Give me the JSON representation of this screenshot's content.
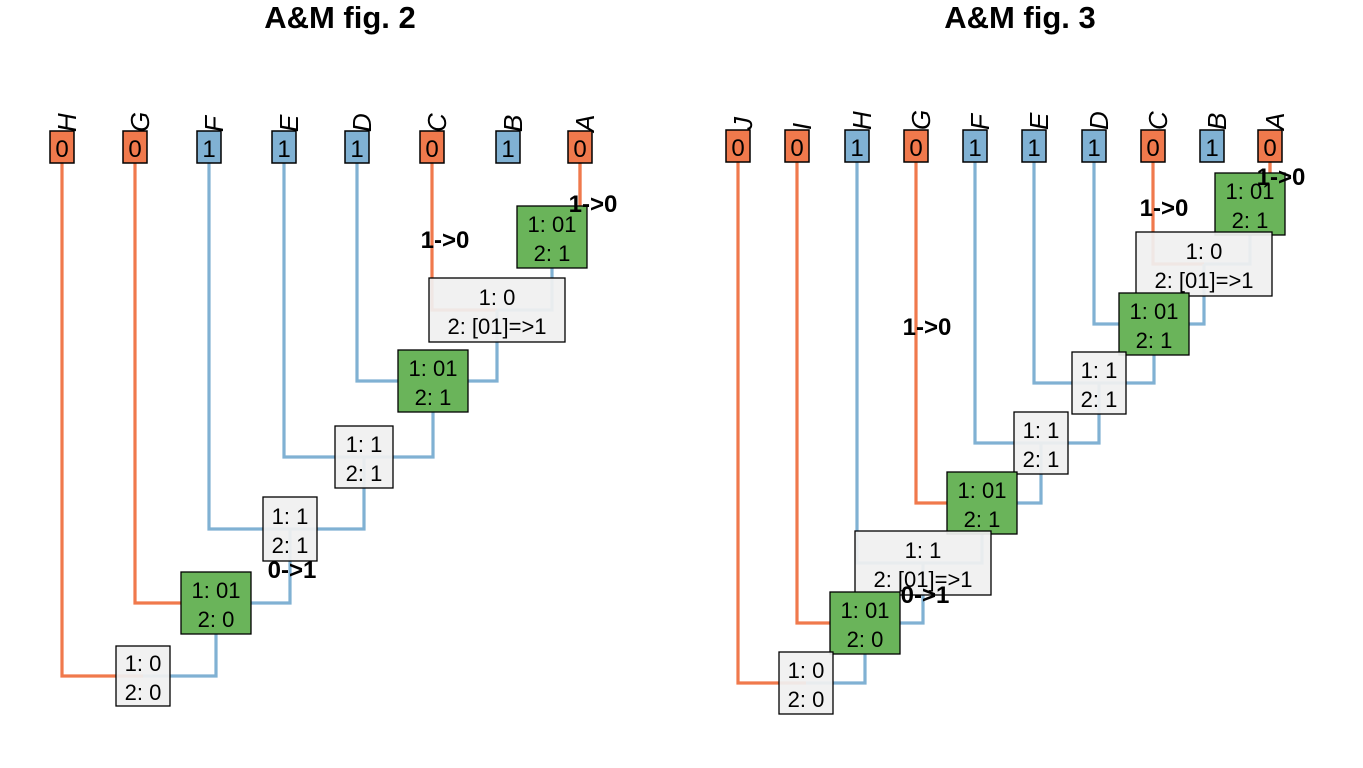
{
  "colors": {
    "state0": "#F0794C",
    "state1": "#80B1D3",
    "ambiguous_fill": "#F0F0F0",
    "green_fill": "#6AB45A",
    "text": "#000000"
  },
  "panels": [
    {
      "title": "A&M fig. 2",
      "tips": [
        {
          "label": "H",
          "state": "0"
        },
        {
          "label": "G",
          "state": "0"
        },
        {
          "label": "F",
          "state": "1"
        },
        {
          "label": "E",
          "state": "1"
        },
        {
          "label": "D",
          "state": "1"
        },
        {
          "label": "C",
          "state": "0"
        },
        {
          "label": "B",
          "state": "1"
        },
        {
          "label": "A",
          "state": "0"
        }
      ],
      "nodes": [
        {
          "line1": "1: 01",
          "line2": "2: 1",
          "fill": "green"
        },
        {
          "line1": "1: 0",
          "line2": "2: [01]=>1",
          "fill": "grey"
        },
        {
          "line1": "1: 01",
          "line2": "2: 1",
          "fill": "green"
        },
        {
          "line1": "1: 1",
          "line2": "2: 1",
          "fill": "grey"
        },
        {
          "line1": "1: 1",
          "line2": "2: 1",
          "fill": "grey"
        },
        {
          "line1": "1: 01",
          "line2": "2: 0",
          "fill": "green"
        },
        {
          "line1": "1: 0",
          "line2": "2: 0",
          "fill": "grey"
        }
      ],
      "transitions": [
        "1->0",
        "1->0",
        "0->1"
      ]
    },
    {
      "title": "A&M fig. 3",
      "tips": [
        {
          "label": "J",
          "state": "0"
        },
        {
          "label": "I",
          "state": "0"
        },
        {
          "label": "H",
          "state": "1"
        },
        {
          "label": "G",
          "state": "0"
        },
        {
          "label": "F",
          "state": "1"
        },
        {
          "label": "E",
          "state": "1"
        },
        {
          "label": "D",
          "state": "1"
        },
        {
          "label": "C",
          "state": "0"
        },
        {
          "label": "B",
          "state": "1"
        },
        {
          "label": "A",
          "state": "0"
        }
      ],
      "nodes": [
        {
          "line1": "1: 01",
          "line2": "2: 1",
          "fill": "green"
        },
        {
          "line1": "1: 0",
          "line2": "2: [01]=>1",
          "fill": "grey"
        },
        {
          "line1": "1: 01",
          "line2": "2: 1",
          "fill": "green"
        },
        {
          "line1": "1: 1",
          "line2": "2: 1",
          "fill": "grey"
        },
        {
          "line1": "1: 1",
          "line2": "2: 1",
          "fill": "grey"
        },
        {
          "line1": "1: 01",
          "line2": "2: 1",
          "fill": "green"
        },
        {
          "line1": "1: 1",
          "line2": "2: [01]=>1",
          "fill": "grey"
        },
        {
          "line1": "1: 01",
          "line2": "2: 0",
          "fill": "green"
        },
        {
          "line1": "1: 0",
          "line2": "2: 0",
          "fill": "grey"
        }
      ],
      "transitions": [
        "1->0",
        "1->0",
        "1->0",
        "0->1"
      ]
    }
  ]
}
